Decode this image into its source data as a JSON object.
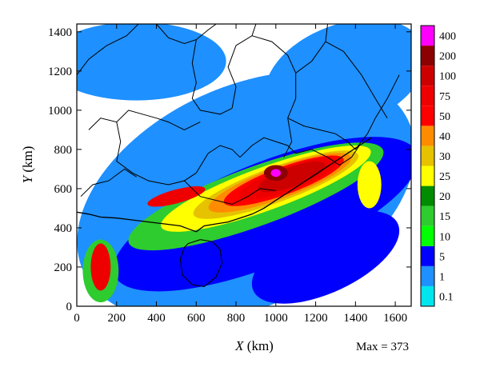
{
  "chart_data": {
    "type": "heatmap",
    "title": "",
    "xlabel": {
      "var": "X",
      "unit": " (km)"
    },
    "ylabel": {
      "var": "Y",
      "unit": " (km)"
    },
    "xlim": [
      0,
      1680
    ],
    "ylim": [
      0,
      1440
    ],
    "x_ticks": [
      "0",
      "200",
      "400",
      "600",
      "800",
      "1000",
      "1200",
      "1400",
      "1600"
    ],
    "x_tick_values": [
      0,
      200,
      400,
      600,
      800,
      1000,
      1200,
      1400,
      1600
    ],
    "y_ticks": [
      "0",
      "200",
      "400",
      "600",
      "800",
      "1000",
      "1200",
      "1400"
    ],
    "y_tick_values": [
      0,
      200,
      400,
      600,
      800,
      1000,
      1200,
      1400
    ],
    "max_text": "Max = 373",
    "max_value": 373,
    "colorbar": {
      "levels": [
        "0.1",
        "1",
        "5",
        "10",
        "15",
        "20",
        "25",
        "30",
        "40",
        "50",
        "75",
        "100",
        "200",
        "400"
      ],
      "colors": [
        "#00e5ee",
        "#1e90ff",
        "#0000ff",
        "#00ff00",
        "#2ecc2e",
        "#008b00",
        "#ffff00",
        "#e6c200",
        "#ff8c00",
        "#ff0000",
        "#ee0000",
        "#cd0000",
        "#8b0000",
        "#ff00ff"
      ]
    },
    "fields": [
      {
        "level": 1,
        "shape": "ellipse",
        "cx": 850,
        "cy": 560,
        "rx": 900,
        "ry": 560,
        "rotate": 25
      },
      {
        "level": 1,
        "shape": "ellipse",
        "cx": 300,
        "cy": 1250,
        "rx": 450,
        "ry": 200,
        "rotate": 0
      },
      {
        "level": 1,
        "shape": "ellipse",
        "cx": 1350,
        "cy": 1180,
        "rx": 420,
        "ry": 260,
        "rotate": 20
      },
      {
        "level": 2,
        "shape": "ellipse",
        "cx": 950,
        "cy": 470,
        "rx": 820,
        "ry": 260,
        "rotate": 22
      },
      {
        "level": 2,
        "shape": "ellipse",
        "cx": 1250,
        "cy": 250,
        "rx": 400,
        "ry": 180,
        "rotate": 25
      },
      {
        "level": 4,
        "shape": "ellipse",
        "cx": 900,
        "cy": 560,
        "rx": 680,
        "ry": 150,
        "rotate": 20
      },
      {
        "level": 4,
        "shape": "ellipse",
        "cx": 120,
        "cy": 180,
        "rx": 90,
        "ry": 160,
        "rotate": 0
      },
      {
        "level": 6,
        "shape": "ellipse",
        "cx": 950,
        "cy": 600,
        "rx": 560,
        "ry": 110,
        "rotate": 20
      },
      {
        "level": 6,
        "shape": "ellipse",
        "cx": 1470,
        "cy": 620,
        "rx": 60,
        "ry": 120,
        "rotate": 0
      },
      {
        "level": 7,
        "shape": "ellipse",
        "cx": 1000,
        "cy": 620,
        "rx": 440,
        "ry": 90,
        "rotate": 20
      },
      {
        "level": 8,
        "shape": "ellipse",
        "cx": 1020,
        "cy": 630,
        "rx": 380,
        "ry": 80,
        "rotate": 20
      },
      {
        "level": 9,
        "shape": "ellipse",
        "cx": 1040,
        "cy": 640,
        "rx": 320,
        "ry": 70,
        "rotate": 20
      },
      {
        "level": 10,
        "shape": "ellipse",
        "cx": 1060,
        "cy": 650,
        "rx": 260,
        "ry": 60,
        "rotate": 20
      },
      {
        "level": 10,
        "shape": "ellipse",
        "cx": 120,
        "cy": 200,
        "rx": 50,
        "ry": 120,
        "rotate": 0
      },
      {
        "level": 10,
        "shape": "ellipse",
        "cx": 500,
        "cy": 560,
        "rx": 150,
        "ry": 35,
        "rotate": 15
      },
      {
        "level": 11,
        "shape": "ellipse",
        "cx": 1080,
        "cy": 660,
        "rx": 180,
        "ry": 50,
        "rotate": 20
      },
      {
        "level": 12,
        "shape": "ellipse",
        "cx": 1000,
        "cy": 680,
        "rx": 60,
        "ry": 40,
        "rotate": 0
      },
      {
        "level": 13,
        "shape": "ellipse",
        "cx": 1000,
        "cy": 680,
        "rx": 25,
        "ry": 20,
        "rotate": 0
      }
    ],
    "boundaries": [
      [
        [
          0,
          1180
        ],
        [
          60,
          1260
        ],
        [
          150,
          1330
        ],
        [
          250,
          1380
        ],
        [
          310,
          1440
        ]
      ],
      [
        [
          400,
          1440
        ],
        [
          460,
          1370
        ],
        [
          540,
          1340
        ],
        [
          600,
          1360
        ],
        [
          660,
          1410
        ],
        [
          700,
          1440
        ]
      ],
      [
        [
          600,
          1360
        ],
        [
          580,
          1240
        ],
        [
          600,
          1140
        ],
        [
          580,
          1060
        ],
        [
          620,
          1000
        ],
        [
          720,
          980
        ],
        [
          780,
          1010
        ]
      ],
      [
        [
          780,
          1010
        ],
        [
          800,
          1120
        ],
        [
          760,
          1220
        ],
        [
          800,
          1330
        ],
        [
          880,
          1380
        ],
        [
          900,
          1440
        ]
      ],
      [
        [
          880,
          1380
        ],
        [
          980,
          1350
        ],
        [
          1060,
          1280
        ],
        [
          1100,
          1190
        ],
        [
          1100,
          1060
        ],
        [
          1060,
          960
        ],
        [
          1080,
          840
        ],
        [
          1040,
          760
        ]
      ],
      [
        [
          1100,
          1190
        ],
        [
          1180,
          1250
        ],
        [
          1250,
          1350
        ],
        [
          1260,
          1440
        ]
      ],
      [
        [
          1250,
          1350
        ],
        [
          1340,
          1300
        ],
        [
          1430,
          1180
        ],
        [
          1500,
          1060
        ],
        [
          1560,
          960
        ]
      ],
      [
        [
          60,
          900
        ],
        [
          120,
          960
        ],
        [
          200,
          940
        ],
        [
          260,
          1000
        ],
        [
          330,
          980
        ],
        [
          400,
          960
        ],
        [
          460,
          940
        ],
        [
          540,
          900
        ],
        [
          620,
          940
        ]
      ],
      [
        [
          200,
          940
        ],
        [
          220,
          840
        ],
        [
          200,
          740
        ],
        [
          280,
          680
        ],
        [
          360,
          640
        ],
        [
          460,
          620
        ],
        [
          540,
          640
        ],
        [
          600,
          680
        ]
      ],
      [
        [
          20,
          560
        ],
        [
          80,
          620
        ],
        [
          160,
          640
        ],
        [
          240,
          700
        ],
        [
          300,
          660
        ]
      ],
      [
        [
          600,
          680
        ],
        [
          660,
          780
        ],
        [
          720,
          820
        ],
        [
          780,
          800
        ],
        [
          820,
          760
        ]
      ],
      [
        [
          540,
          640
        ],
        [
          620,
          560
        ],
        [
          700,
          540
        ],
        [
          780,
          520
        ],
        [
          860,
          560
        ],
        [
          920,
          600
        ],
        [
          1000,
          590
        ]
      ],
      [
        [
          820,
          760
        ],
        [
          880,
          820
        ],
        [
          940,
          860
        ],
        [
          1000,
          840
        ],
        [
          1060,
          820
        ],
        [
          1100,
          780
        ]
      ],
      [
        [
          1100,
          780
        ],
        [
          1180,
          800
        ],
        [
          1260,
          760
        ],
        [
          1320,
          720
        ],
        [
          1380,
          760
        ],
        [
          1420,
          820
        ]
      ],
      [
        [
          1060,
          960
        ],
        [
          1140,
          920
        ],
        [
          1220,
          900
        ],
        [
          1300,
          880
        ],
        [
          1360,
          840
        ],
        [
          1400,
          800
        ]
      ],
      [
        [
          1400,
          800
        ],
        [
          1460,
          880
        ],
        [
          1500,
          960
        ],
        [
          1560,
          1060
        ],
        [
          1620,
          1180
        ]
      ]
    ],
    "coastline": [
      [
        0,
        480
      ],
      [
        60,
        470
      ],
      [
        120,
        455
      ],
      [
        200,
        450
      ],
      [
        280,
        440
      ],
      [
        360,
        430
      ],
      [
        440,
        420
      ],
      [
        520,
        410
      ],
      [
        560,
        395
      ],
      [
        600,
        380
      ],
      [
        640,
        410
      ],
      [
        700,
        420
      ],
      [
        760,
        430
      ],
      [
        820,
        450
      ],
      [
        880,
        470
      ],
      [
        940,
        500
      ],
      [
        1000,
        540
      ],
      [
        1060,
        580
      ],
      [
        1120,
        620
      ],
      [
        1180,
        660
      ],
      [
        1240,
        700
      ],
      [
        1300,
        740
      ],
      [
        1360,
        780
      ],
      [
        1420,
        820
      ],
      [
        1480,
        860
      ]
    ],
    "island": [
      [
        560,
        320
      ],
      [
        620,
        340
      ],
      [
        680,
        330
      ],
      [
        720,
        290
      ],
      [
        730,
        220
      ],
      [
        700,
        150
      ],
      [
        640,
        100
      ],
      [
        580,
        110
      ],
      [
        530,
        160
      ],
      [
        520,
        240
      ],
      [
        540,
        300
      ],
      [
        560,
        320
      ]
    ]
  }
}
